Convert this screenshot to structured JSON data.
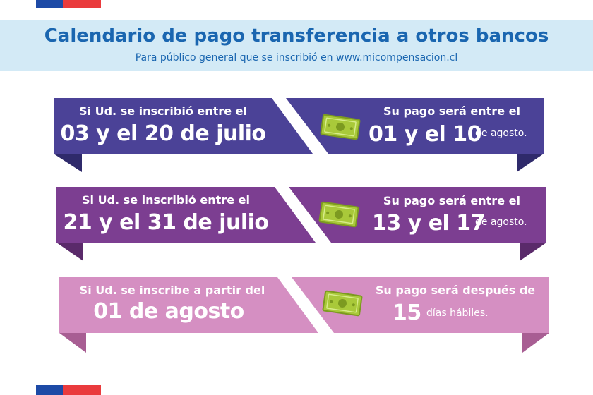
{
  "header": {
    "title": "Calendario de pago transferencia a otros bancos",
    "subtitle": "Para público general que se inscribió en www.micompensacion.cl"
  },
  "rows": [
    {
      "left_line1": "Si Ud. se inscribió entre el",
      "left_line2": "03 y el 20 de julio",
      "right_line1": "Su pago será entre el",
      "right_big": "01 y el 10",
      "right_small": "de agosto.",
      "color": "#4b4297",
      "fold_color": "#2f2a6b"
    },
    {
      "left_line1": "Si Ud. se inscribió entre el",
      "left_line2": "21 y el 31 de julio",
      "right_line1": "Su pago será entre el",
      "right_big": "13 y el 17",
      "right_small": "de agosto.",
      "color": "#7c3e91",
      "fold_color": "#5a2a6a"
    },
    {
      "left_line1": "Si Ud. se inscribe a partir del",
      "left_line2": "01 de agosto",
      "right_line1": "Su pago será después de",
      "right_big": "15",
      "right_small": "días hábiles.",
      "color": "#d58fc2",
      "fold_color": "#a85e93"
    }
  ],
  "icons": {
    "money": "money-bill-icon"
  },
  "colors": {
    "flag_blue": "#1d4aa6",
    "flag_red": "#ea3b3d",
    "header_bg": "#d3eaf6",
    "title": "#1a66b0"
  }
}
